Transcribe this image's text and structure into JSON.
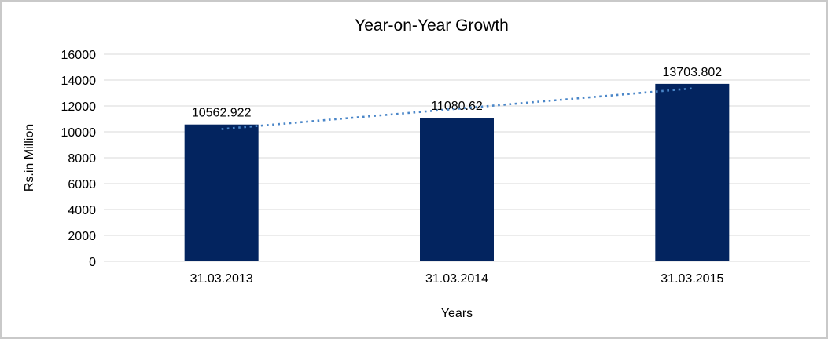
{
  "window": {
    "background": "#ffffff",
    "frame_color": "#c9c9c9"
  },
  "chart_data": {
    "type": "bar",
    "title": "Year-on-Year Growth",
    "categories": [
      "31.03.2013",
      "31.03.2014",
      "31.03.2015"
    ],
    "values": [
      10562.922,
      11080.62,
      13703.802
    ],
    "data_labels": [
      "10562.922",
      "11080.62",
      "13703.802"
    ],
    "xlabel": "Years",
    "ylabel": "Rs.in Million",
    "ylim": [
      0,
      16000
    ],
    "yticks": [
      0,
      2000,
      4000,
      6000,
      8000,
      10000,
      12000,
      14000,
      16000
    ],
    "grid": true,
    "legend": "none",
    "bar_color": "#03245f",
    "gridline_color": "#d9d9d9",
    "text_color": "#000000",
    "trendline": {
      "type": "linear",
      "style": "dotted",
      "color": "#4a86c8"
    }
  }
}
